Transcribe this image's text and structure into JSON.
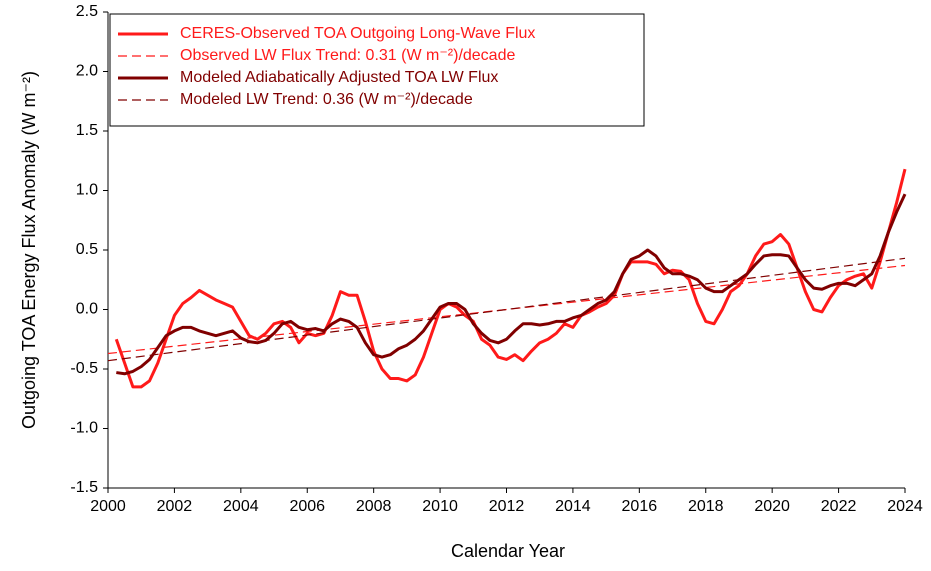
{
  "chart_data": {
    "type": "line",
    "xlabel": "Calendar Year",
    "ylabel": "Outgoing TOA Energy Flux Anomaly (W m⁻²)",
    "xlim": [
      2000,
      2024
    ],
    "ylim": [
      -1.5,
      2.5
    ],
    "xticks": [
      2000,
      2002,
      2004,
      2006,
      2008,
      2010,
      2012,
      2014,
      2016,
      2018,
      2020,
      2022,
      2024
    ],
    "yticks": [
      {
        "value": -1.5,
        "label": "-1.5"
      },
      {
        "value": -1,
        "label": "-1.0"
      },
      {
        "value": -0.5,
        "label": "-0.5"
      },
      {
        "value": 0,
        "label": "0.0"
      },
      {
        "value": 0.5,
        "label": "0.5"
      },
      {
        "value": 1,
        "label": "1.0"
      },
      {
        "value": 1.5,
        "label": "1.5"
      },
      {
        "value": 2,
        "label": "2.0"
      },
      {
        "value": 2.5,
        "label": "2.5"
      }
    ],
    "grid": false,
    "legend": "upper left",
    "x": [
      2000.25,
      2000.5,
      2000.75,
      2001,
      2001.25,
      2001.5,
      2001.75,
      2002,
      2002.25,
      2002.5,
      2002.75,
      2003,
      2003.25,
      2003.5,
      2003.75,
      2004,
      2004.25,
      2004.5,
      2004.75,
      2005,
      2005.25,
      2005.5,
      2005.75,
      2006,
      2006.25,
      2006.5,
      2006.75,
      2007,
      2007.25,
      2007.5,
      2007.75,
      2008,
      2008.25,
      2008.5,
      2008.75,
      2009,
      2009.25,
      2009.5,
      2009.75,
      2010,
      2010.25,
      2010.5,
      2010.75,
      2011,
      2011.25,
      2011.5,
      2011.75,
      2012,
      2012.25,
      2012.5,
      2012.75,
      2013,
      2013.25,
      2013.5,
      2013.75,
      2014,
      2014.25,
      2014.5,
      2014.75,
      2015,
      2015.25,
      2015.5,
      2015.75,
      2016,
      2016.25,
      2016.5,
      2016.75,
      2017,
      2017.25,
      2017.5,
      2017.75,
      2018,
      2018.25,
      2018.5,
      2018.75,
      2019,
      2019.25,
      2019.5,
      2019.75,
      2020,
      2020.25,
      2020.5,
      2020.75,
      2021,
      2021.25,
      2021.5,
      2021.75,
      2022,
      2022.25,
      2022.5,
      2022.75,
      2023,
      2023.25,
      2023.5,
      2023.75,
      2024
    ],
    "series": [
      {
        "name": "CERES-Observed TOA Outgoing Long-Wave Flux",
        "color": "#ff1a1a",
        "dashed": false,
        "values": [
          -0.25,
          -0.45,
          -0.65,
          -0.65,
          -0.6,
          -0.45,
          -0.25,
          -0.05,
          0.05,
          0.1,
          0.16,
          0.12,
          0.08,
          0.05,
          0.02,
          -0.1,
          -0.22,
          -0.25,
          -0.2,
          -0.12,
          -0.1,
          -0.15,
          -0.28,
          -0.2,
          -0.22,
          -0.2,
          -0.05,
          0.15,
          0.12,
          0.12,
          -0.1,
          -0.35,
          -0.5,
          -0.58,
          -0.58,
          -0.6,
          -0.55,
          -0.4,
          -0.2,
          0,
          0.05,
          0.02,
          -0.05,
          -0.1,
          -0.25,
          -0.3,
          -0.4,
          -0.42,
          -0.38,
          -0.43,
          -0.35,
          -0.28,
          -0.25,
          -0.2,
          -0.12,
          -0.15,
          -0.05,
          -0.02,
          0.02,
          0.05,
          0.12,
          0.3,
          0.4,
          0.4,
          0.4,
          0.38,
          0.3,
          0.33,
          0.32,
          0.25,
          0.05,
          -0.1,
          -0.12,
          0,
          0.15,
          0.2,
          0.3,
          0.45,
          0.55,
          0.57,
          0.63,
          0.55,
          0.35,
          0.15,
          0,
          -0.02,
          0.1,
          0.2,
          0.25,
          0.28,
          0.3,
          0.18,
          0.4,
          0.65,
          0.9,
          1.18
        ]
      },
      {
        "name": "Observed LW Flux Trend: 0.31 (W m⁻²)/decade",
        "color": "#ff1a1a",
        "dashed": true,
        "x": [
          2000,
          2024
        ],
        "values": [
          -0.37,
          0.37
        ]
      },
      {
        "name": "Modeled Adiabatically Adjusted TOA LW Flux",
        "color": "#800000",
        "dashed": false,
        "values": [
          -0.53,
          -0.54,
          -0.52,
          -0.48,
          -0.42,
          -0.32,
          -0.22,
          -0.18,
          -0.15,
          -0.15,
          -0.18,
          -0.2,
          -0.22,
          -0.2,
          -0.18,
          -0.24,
          -0.27,
          -0.28,
          -0.26,
          -0.2,
          -0.12,
          -0.1,
          -0.15,
          -0.17,
          -0.16,
          -0.18,
          -0.12,
          -0.08,
          -0.1,
          -0.15,
          -0.28,
          -0.38,
          -0.4,
          -0.38,
          -0.33,
          -0.3,
          -0.25,
          -0.18,
          -0.08,
          0.02,
          0.05,
          0.05,
          0,
          -0.12,
          -0.2,
          -0.26,
          -0.28,
          -0.25,
          -0.18,
          -0.12,
          -0.12,
          -0.13,
          -0.12,
          -0.1,
          -0.1,
          -0.07,
          -0.05,
          0,
          0.05,
          0.08,
          0.15,
          0.3,
          0.42,
          0.45,
          0.5,
          0.45,
          0.35,
          0.3,
          0.3,
          0.28,
          0.25,
          0.18,
          0.15,
          0.15,
          0.2,
          0.25,
          0.3,
          0.38,
          0.45,
          0.46,
          0.46,
          0.45,
          0.35,
          0.25,
          0.18,
          0.17,
          0.2,
          0.22,
          0.22,
          0.2,
          0.25,
          0.3,
          0.45,
          0.65,
          0.82,
          0.97
        ]
      },
      {
        "name": "Modeled LW Trend: 0.36 (W m⁻²)/decade",
        "color": "#800000",
        "dashed": true,
        "x": [
          2000,
          2024
        ],
        "values": [
          -0.43,
          0.43
        ]
      }
    ]
  }
}
